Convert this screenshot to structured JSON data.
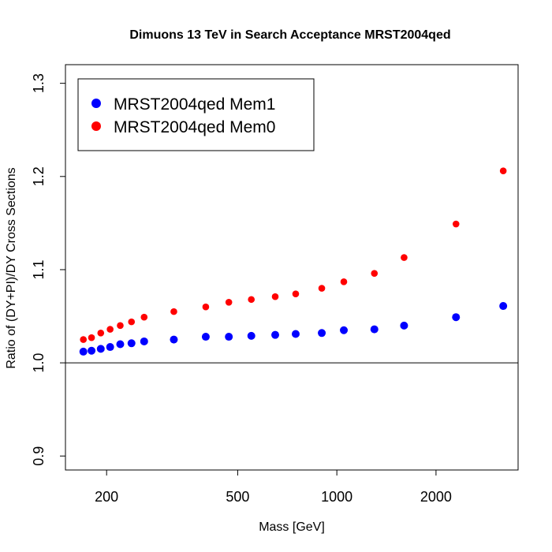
{
  "chart_data": {
    "type": "scatter",
    "title": "Dimuons 13 TeV in Search Acceptance MRST2004qed",
    "xlabel": "Mass [GeV]",
    "ylabel": "Ratio of (DY+PI)/DY Cross Sections",
    "x_scale": "log",
    "xlim": [
      150,
      3550
    ],
    "ylim": [
      0.885,
      1.32
    ],
    "x_ticks": [
      200,
      500,
      1000,
      2000
    ],
    "y_ticks": [
      0.9,
      1.0,
      1.1,
      1.2,
      1.3
    ],
    "reference_line": 1.0,
    "legend_position": "top-left",
    "grid": false,
    "series": [
      {
        "name": "MRST2004qed Mem1",
        "color": "#0000ff",
        "x": [
          170,
          180,
          192,
          205,
          220,
          238,
          260,
          320,
          400,
          470,
          550,
          650,
          750,
          900,
          1050,
          1300,
          1600,
          2300,
          3200
        ],
        "y": [
          1.012,
          1.013,
          1.015,
          1.017,
          1.02,
          1.021,
          1.023,
          1.025,
          1.028,
          1.028,
          1.029,
          1.03,
          1.031,
          1.032,
          1.035,
          1.036,
          1.04,
          1.049,
          1.061
        ]
      },
      {
        "name": "MRST2004qed Mem0",
        "color": "#ff0000",
        "x": [
          170,
          180,
          192,
          205,
          220,
          238,
          260,
          320,
          400,
          470,
          550,
          650,
          750,
          900,
          1050,
          1300,
          1600,
          2300,
          3200
        ],
        "y": [
          1.025,
          1.027,
          1.032,
          1.036,
          1.04,
          1.044,
          1.049,
          1.055,
          1.06,
          1.065,
          1.068,
          1.071,
          1.074,
          1.08,
          1.087,
          1.096,
          1.113,
          1.149,
          1.206
        ]
      }
    ]
  }
}
